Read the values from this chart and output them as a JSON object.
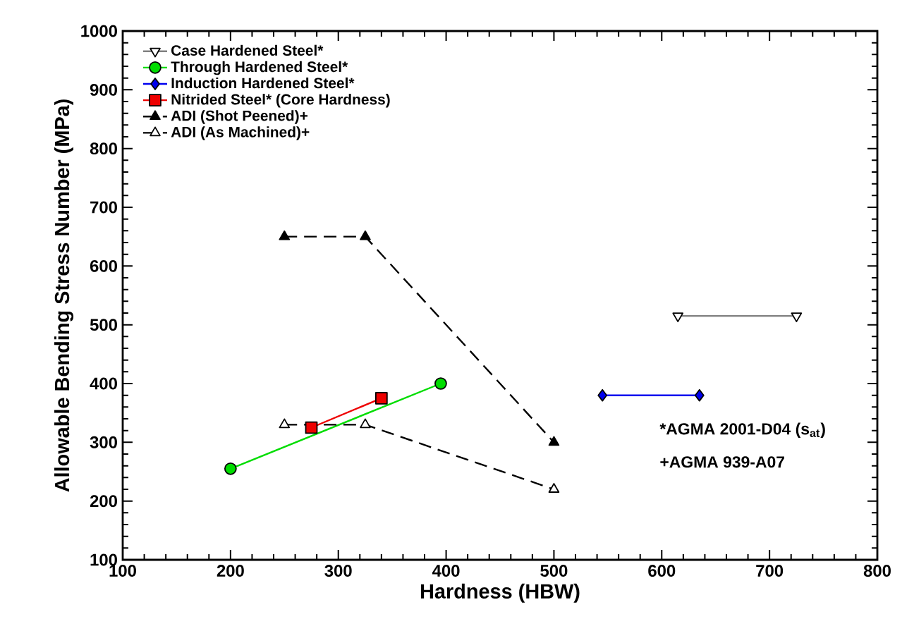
{
  "chart_data": {
    "type": "line",
    "xlabel": "Hardness (HBW)",
    "ylabel": "Allowable Bending Stress Number (MPa)",
    "xlim": [
      100,
      800
    ],
    "xticks": [
      100,
      200,
      300,
      400,
      500,
      600,
      700,
      800
    ],
    "ylim": [
      100,
      1000
    ],
    "yticks": [
      100,
      200,
      300,
      400,
      500,
      600,
      700,
      800,
      900,
      1000
    ],
    "grid": false,
    "legend": "top left",
    "series": [
      {
        "name": "Case Hardened Steel*",
        "color": "#808080",
        "marker": "triangle-down-open",
        "line_style": "solid",
        "x": [
          615,
          725
        ],
        "values": [
          515,
          515
        ]
      },
      {
        "name": "Through Hardened Steel*",
        "color": "#00dd00",
        "marker": "circle",
        "line_style": "solid",
        "x": [
          200,
          395
        ],
        "values": [
          255,
          400
        ]
      },
      {
        "name": "Induction Hardened Steel*",
        "color": "#0000ee",
        "marker": "diamond",
        "line_style": "solid",
        "x": [
          545,
          635
        ],
        "values": [
          380,
          380
        ]
      },
      {
        "name": "Nitrided Steel* (Core Hardness)",
        "color": "#ee0000",
        "marker": "square",
        "line_style": "solid",
        "x": [
          275,
          340
        ],
        "values": [
          325,
          375
        ]
      },
      {
        "name": "ADI (Shot Peened)+",
        "color": "#000000",
        "marker": "triangle",
        "line_style": "dashed",
        "x": [
          250,
          325,
          500
        ],
        "values": [
          650,
          650,
          300
        ]
      },
      {
        "name": "ADI (As Machined)+",
        "color": "#000000",
        "marker": "triangle-open",
        "line_style": "dashed",
        "x": [
          250,
          325,
          500
        ],
        "values": [
          330,
          330,
          220
        ]
      }
    ],
    "annotations": [
      "*AGMA 2001-D04 (s$_{at}$)",
      "+AGMA 939-A07"
    ]
  }
}
